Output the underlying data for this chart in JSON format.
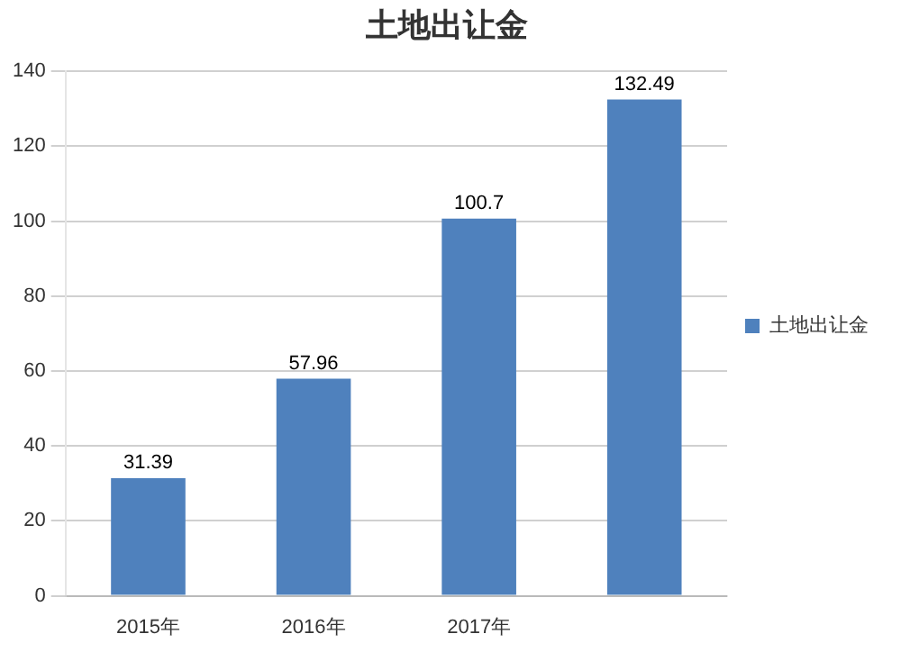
{
  "chart_data": {
    "type": "bar",
    "title": "土地出让金",
    "categories": [
      "2015年",
      "2016年",
      "2017年",
      null
    ],
    "series": [
      {
        "name": "土地出让金",
        "color": "#4f81bd",
        "values": [
          31.39,
          57.96,
          100.7,
          132.49
        ]
      }
    ],
    "ylim": [
      0,
      140
    ],
    "yticks": [
      0,
      20,
      40,
      60,
      80,
      100,
      120,
      140
    ],
    "grid": "y",
    "legend": "right",
    "data_labels": true
  }
}
